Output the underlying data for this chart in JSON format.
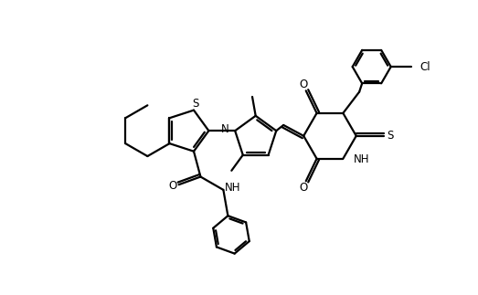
{
  "background_color": "#ffffff",
  "line_color": "#000000",
  "line_width": 1.6,
  "figsize": [
    5.23,
    3.23
  ],
  "dpi": 100,
  "xlim": [
    0,
    10.5
  ],
  "ylim": [
    -0.5,
    7.0
  ],
  "bl": 0.68
}
